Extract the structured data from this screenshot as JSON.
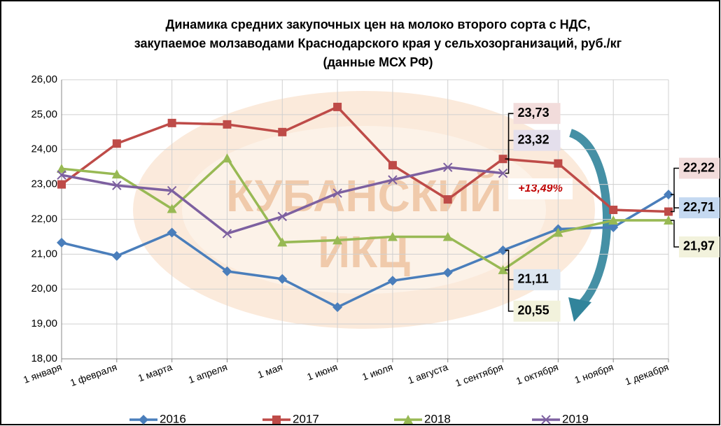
{
  "chart_data": {
    "type": "line",
    "title": [
      "Динамика средних закупочных цен на молоко второго сорта с НДС,",
      "закупаемое молзаводами Краснодарского края у сельхозорганизаций, руб./кг",
      "(данные МСХ РФ)"
    ],
    "watermark": [
      "КУБАНСКИЙ",
      "ИКЦ"
    ],
    "annotation": "+13,49%",
    "categories": [
      "1 января",
      "1 февраля",
      "1 марта",
      "1 апреля",
      "1 мая",
      "1 июня",
      "1 июля",
      "1 августа",
      "1 сентября",
      "1 октября",
      "1 ноября",
      "1 декабря"
    ],
    "series": [
      {
        "name": "2016",
        "color": "#4a7ebb",
        "marker": "diamond",
        "values": [
          21.33,
          20.95,
          21.62,
          20.51,
          20.29,
          19.48,
          20.24,
          20.47,
          21.11,
          21.72,
          21.77,
          22.71
        ],
        "value_labels": [
          null,
          null,
          null,
          null,
          null,
          null,
          null,
          null,
          "21,11",
          null,
          null,
          "22,71"
        ]
      },
      {
        "name": "2017",
        "color": "#be4b48",
        "marker": "square",
        "values": [
          23.0,
          24.17,
          24.76,
          24.72,
          24.5,
          25.22,
          23.55,
          22.57,
          23.73,
          23.6,
          22.27,
          22.22
        ],
        "value_labels": [
          null,
          null,
          null,
          null,
          null,
          null,
          null,
          null,
          "23,73",
          null,
          null,
          "22,22"
        ]
      },
      {
        "name": "2018",
        "color": "#98b954",
        "marker": "triangle",
        "values": [
          23.45,
          23.29,
          22.3,
          23.75,
          21.34,
          21.4,
          21.5,
          21.5,
          20.55,
          21.62,
          21.97,
          21.97
        ],
        "value_labels": [
          null,
          null,
          null,
          null,
          null,
          null,
          null,
          null,
          "20,55",
          null,
          null,
          "21,97"
        ]
      },
      {
        "name": "2019",
        "color": "#7d60a0",
        "marker": "x",
        "values": [
          23.27,
          22.97,
          22.82,
          21.59,
          22.08,
          22.75,
          23.13,
          23.49,
          23.32,
          null,
          null,
          null
        ],
        "value_labels": [
          null,
          null,
          null,
          null,
          null,
          null,
          null,
          null,
          "23,32",
          null,
          null,
          null
        ]
      }
    ],
    "ylim": [
      18,
      26
    ],
    "yticks": [
      {
        "value": 18,
        "label": "18,00"
      },
      {
        "value": 19,
        "label": "19,00"
      },
      {
        "value": 20,
        "label": "20,00"
      },
      {
        "value": 21,
        "label": "21,00"
      },
      {
        "value": 22,
        "label": "22,00"
      },
      {
        "value": 23,
        "label": "23,00"
      },
      {
        "value": 24,
        "label": "24,00"
      },
      {
        "value": 25,
        "label": "25,00"
      },
      {
        "value": 26,
        "label": "26,00"
      }
    ],
    "grid": true,
    "legend": "bottom"
  }
}
